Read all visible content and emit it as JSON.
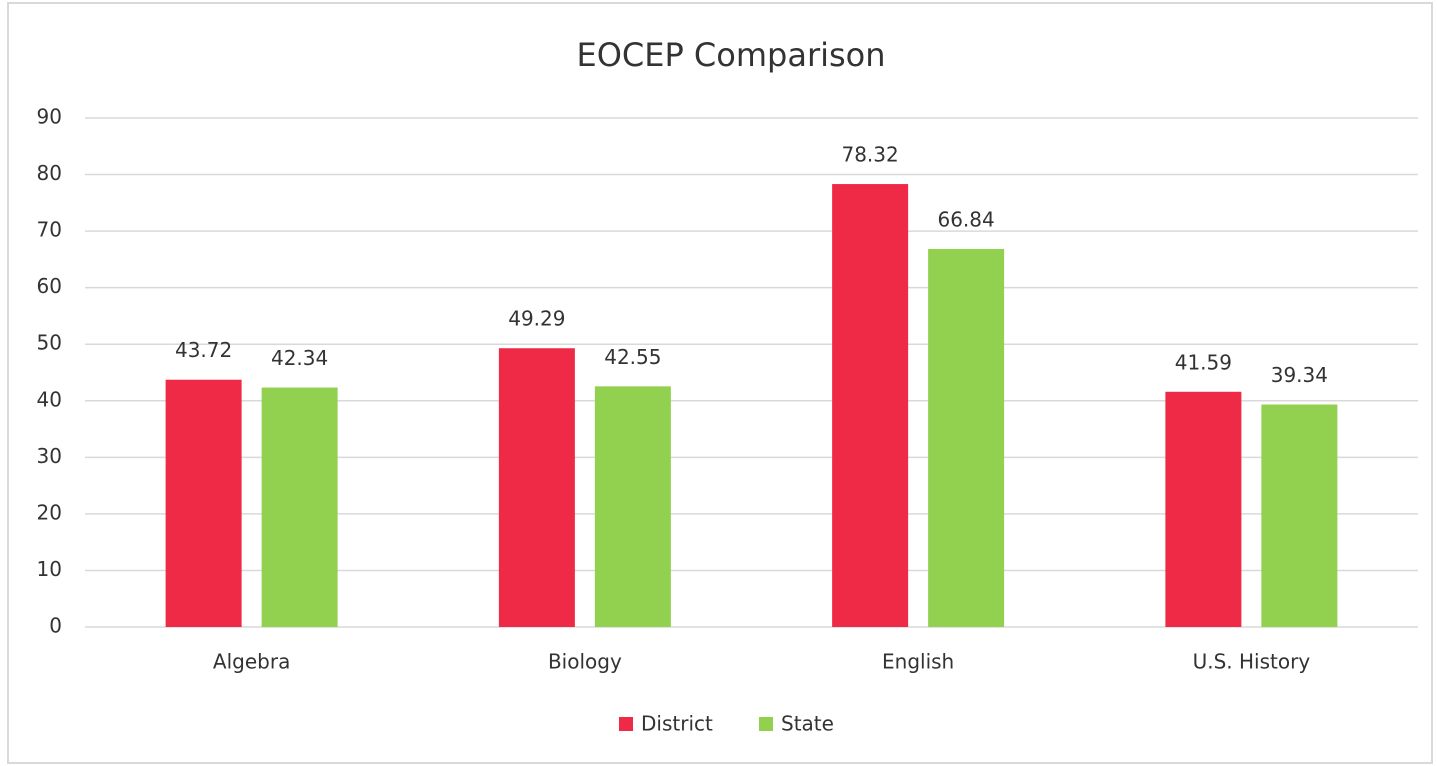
{
  "chart_data": {
    "type": "bar",
    "title": "EOCEP Comparison",
    "categories": [
      "Algebra",
      "Biology",
      "English",
      "U.S. History"
    ],
    "series": [
      {
        "name": "District",
        "color": "#ee2a47",
        "values": [
          43.72,
          49.29,
          78.32,
          41.59
        ]
      },
      {
        "name": "State",
        "color": "#92d050",
        "values": [
          42.34,
          42.55,
          66.84,
          39.34
        ]
      }
    ],
    "ylim": [
      0,
      90
    ],
    "yticks": [
      0,
      10,
      20,
      30,
      40,
      50,
      60,
      70,
      80,
      90
    ],
    "grid": true,
    "legend": "bottom"
  }
}
